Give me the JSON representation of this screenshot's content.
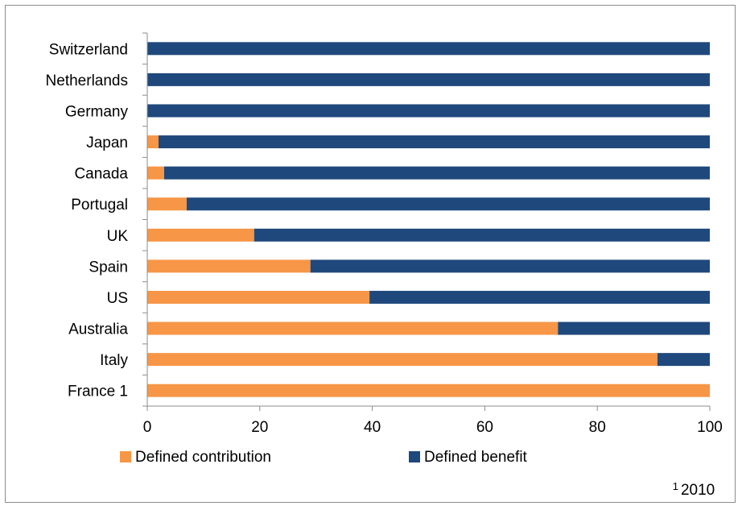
{
  "chart_data": {
    "type": "bar",
    "orientation": "horizontal",
    "stacked": true,
    "categories": [
      "Switzerland",
      "Netherlands",
      "Germany",
      "Japan",
      "Canada",
      "Portugal",
      "UK",
      "Spain",
      "US",
      "Australia",
      "Italy",
      "France 1"
    ],
    "series": [
      {
        "name": "Defined contribution",
        "color": "#F79646",
        "values": [
          0,
          0,
          0,
          2,
          3,
          7,
          19,
          29,
          39.5,
          73,
          90.7,
          100
        ]
      },
      {
        "name": "Defined benefit",
        "color": "#1F497D",
        "values": [
          100,
          100,
          100,
          98,
          97,
          93,
          81,
          71,
          60.5,
          27,
          9.3,
          0
        ]
      }
    ],
    "xlim": [
      0,
      100
    ],
    "xticks": [
      "0",
      "20",
      "40",
      "60",
      "80",
      "100"
    ],
    "grid": false,
    "legend_position": "bottom",
    "note_superscript": "1",
    "note_text": "2010"
  }
}
